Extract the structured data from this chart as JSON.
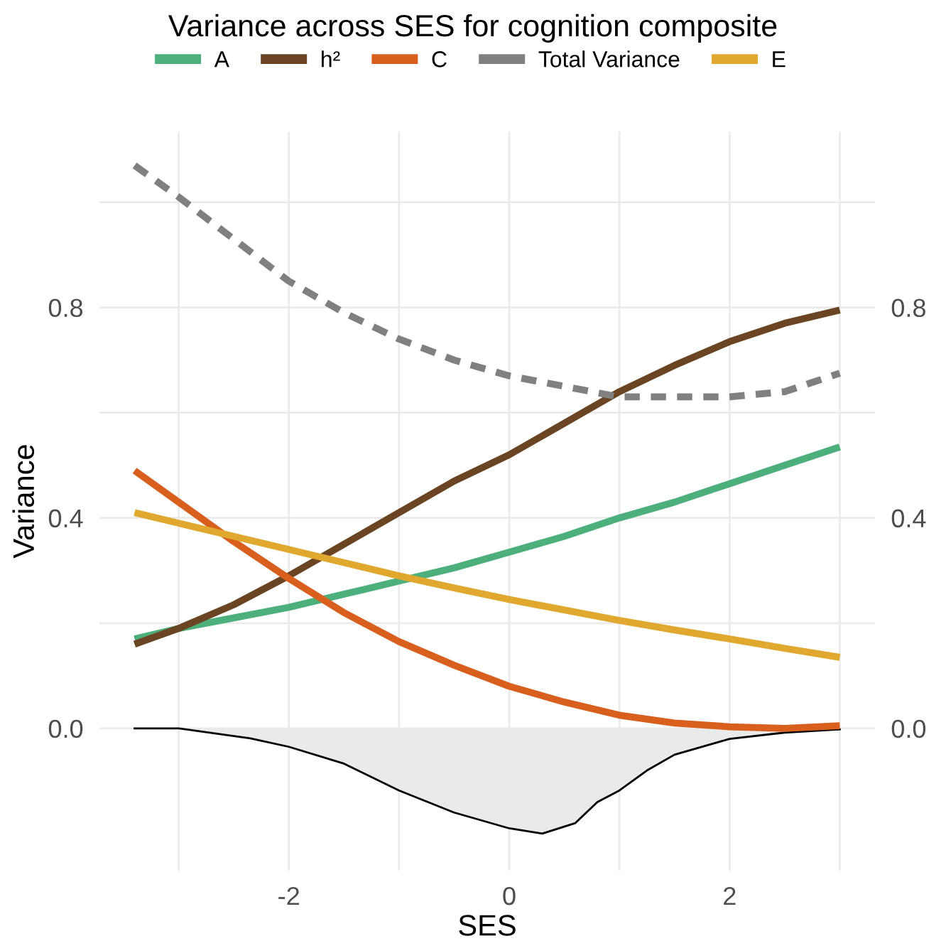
{
  "chart_data": {
    "type": "line",
    "title": "Variance across SES for cognition composite",
    "xlabel": "SES",
    "ylabel": "Variance",
    "legend": "top",
    "grid": true,
    "xlim": [
      -3.72,
      3.32
    ],
    "ylim": [
      -0.27,
      1.134
    ],
    "y2lim": [
      -0.27,
      1.134
    ],
    "xticks": [
      {
        "value": -3,
        "label": null
      },
      {
        "value": -2,
        "label": "-2"
      },
      {
        "value": -1,
        "label": null
      },
      {
        "value": 0,
        "label": "0"
      },
      {
        "value": 1,
        "label": null
      },
      {
        "value": 2,
        "label": "2"
      },
      {
        "value": 3,
        "label": null
      }
    ],
    "yticks": [
      {
        "value": 0.0,
        "label": "0.0"
      },
      {
        "value": 0.2,
        "label": null
      },
      {
        "value": 0.4,
        "label": "0.4"
      },
      {
        "value": 0.6,
        "label": null
      },
      {
        "value": 0.8,
        "label": "0.8"
      },
      {
        "value": 1.0,
        "label": null
      }
    ],
    "y2ticks": [
      {
        "value": 0.0,
        "label": "0.0"
      },
      {
        "value": 0.4,
        "label": "0.4"
      },
      {
        "value": 0.8,
        "label": "0.8"
      }
    ],
    "x": [
      -3.4,
      -3,
      -2.5,
      -2,
      -1.5,
      -1,
      -0.5,
      0,
      0.5,
      1,
      1.5,
      2,
      2.5,
      3
    ],
    "series": [
      {
        "name": "A",
        "color": "#4daf7c",
        "line_style": "solid",
        "values": [
          0.17,
          0.19,
          0.21,
          0.23,
          0.255,
          0.28,
          0.305,
          0.335,
          0.365,
          0.4,
          0.43,
          0.465,
          0.5,
          0.535
        ]
      },
      {
        "name": "h²",
        "color": "#6b4523",
        "line_style": "solid",
        "values": [
          0.16,
          0.19,
          0.235,
          0.29,
          0.35,
          0.41,
          0.47,
          0.52,
          0.58,
          0.64,
          0.69,
          0.735,
          0.77,
          0.795
        ]
      },
      {
        "name": "C",
        "color": "#d95f1e",
        "line_style": "solid",
        "values": [
          0.49,
          0.43,
          0.355,
          0.285,
          0.22,
          0.165,
          0.12,
          0.08,
          0.05,
          0.025,
          0.01,
          0.003,
          0.0,
          0.005
        ]
      },
      {
        "name": "Total Variance",
        "color": "#808080",
        "line_style": "dashed",
        "values": [
          1.07,
          1.01,
          0.93,
          0.85,
          0.79,
          0.74,
          0.7,
          0.67,
          0.65,
          0.63,
          0.63,
          0.63,
          0.64,
          0.675
        ]
      },
      {
        "name": "E",
        "color": "#e0a82e",
        "line_style": "solid",
        "values": [
          0.41,
          0.39,
          0.365,
          0.34,
          0.315,
          0.29,
          0.267,
          0.245,
          0.225,
          0.205,
          0.187,
          0.17,
          0.152,
          0.135
        ]
      },
      {
        "type": "area",
        "color": "#e9ebea",
        "x": [
          -3.4,
          -3,
          -2.35,
          -2,
          -1.5,
          -1,
          -0.5,
          0,
          0.3,
          0.6,
          0.8,
          1,
          1.25,
          1.5,
          2,
          2.5,
          3
        ],
        "values": [
          0,
          0,
          -0.019,
          -0.035,
          -0.067,
          -0.118,
          -0.16,
          -0.19,
          -0.2,
          -0.18,
          -0.14,
          -0.118,
          -0.08,
          -0.05,
          -0.02,
          -0.008,
          -0.002
        ]
      }
    ]
  }
}
